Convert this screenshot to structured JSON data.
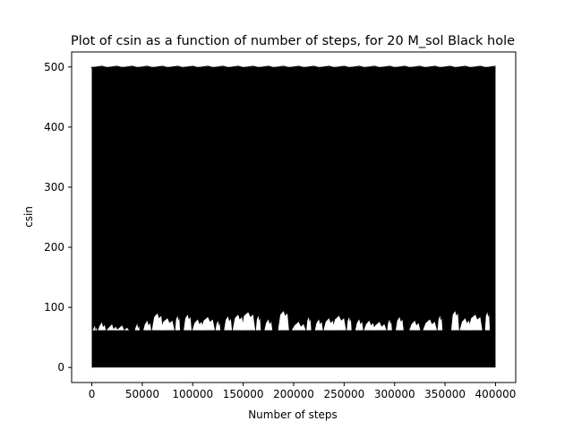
{
  "chart_data": {
    "type": "line",
    "title": "Plot of csin as a function of number of steps, for 20 M_sol Black hole",
    "xlabel": "Number of steps",
    "ylabel": "csin",
    "xlim": [
      -20000,
      420000
    ],
    "ylim": [
      -25,
      525
    ],
    "x_ticks": [
      0,
      50000,
      100000,
      150000,
      200000,
      250000,
      300000,
      350000,
      400000
    ],
    "y_ticks": [
      0,
      100,
      200,
      300,
      400,
      500
    ],
    "series": [
      {
        "name": "csin",
        "color": "#000000",
        "description_range": {
          "x_min": 0,
          "x_max": 400000,
          "y_min": 0,
          "y_max": 500
        },
        "gap_band": {
          "y_floor": 62,
          "segments_x": [
            [
              3000,
              70
            ],
            [
              10000,
              75
            ],
            [
              20000,
              72
            ],
            [
              30000,
              70
            ],
            [
              45000,
              73
            ],
            [
              55000,
              78
            ],
            [
              65000,
              90
            ],
            [
              75000,
              82
            ],
            [
              85000,
              86
            ],
            [
              95000,
              88
            ],
            [
              105000,
              80
            ],
            [
              115000,
              84
            ],
            [
              125000,
              78
            ],
            [
              135000,
              85
            ],
            [
              145000,
              88
            ],
            [
              155000,
              92
            ],
            [
              165000,
              86
            ],
            [
              175000,
              80
            ],
            [
              190000,
              94
            ],
            [
              205000,
              76
            ],
            [
              215000,
              84
            ],
            [
              225000,
              80
            ],
            [
              235000,
              82
            ],
            [
              245000,
              86
            ],
            [
              255000,
              84
            ],
            [
              265000,
              80
            ],
            [
              275000,
              78
            ],
            [
              285000,
              76
            ],
            [
              295000,
              80
            ],
            [
              305000,
              84
            ],
            [
              320000,
              78
            ],
            [
              335000,
              80
            ],
            [
              345000,
              86
            ],
            [
              360000,
              94
            ],
            [
              370000,
              82
            ],
            [
              380000,
              88
            ],
            [
              392000,
              92
            ]
          ]
        }
      }
    ]
  }
}
